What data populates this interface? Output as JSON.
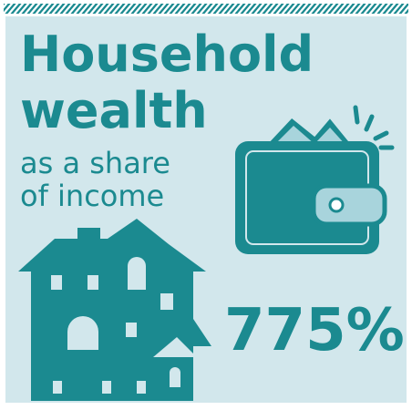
{
  "header": {
    "title_line1": "Household",
    "title_line2": "wealth",
    "subtitle_line1": "as a share",
    "subtitle_line2": "of income"
  },
  "stat": {
    "value": "775%"
  }
}
